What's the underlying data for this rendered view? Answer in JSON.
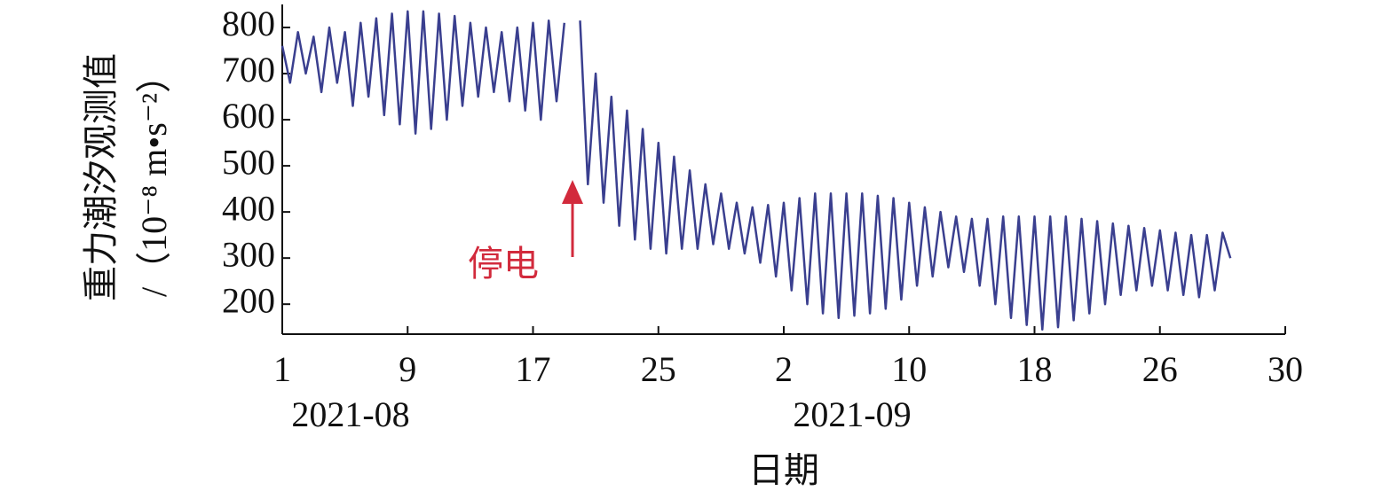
{
  "chart_data": {
    "type": "line",
    "y_label": "重力潮汐观测值",
    "y_unit_label": "/（10⁻⁸ m•s⁻²）",
    "x_label": "日期",
    "month_labels": [
      "2021-08",
      "2021-09"
    ],
    "annotation": "停电",
    "annotation_color": "#d22a3c",
    "color": "#3a3f8f",
    "xlim": [
      1,
      65
    ],
    "ylim": [
      135,
      850
    ],
    "xticks": [
      1,
      9,
      17,
      25,
      {
        "value": 33,
        "label": "2"
      },
      {
        "value": 41,
        "label": "10"
      },
      {
        "value": 49,
        "label": "18"
      },
      {
        "value": 57,
        "label": "26"
      },
      {
        "value": 65,
        "label": "30"
      }
    ],
    "yticks": [
      200,
      300,
      400,
      500,
      600,
      700,
      800
    ],
    "x": [
      1,
      1.5,
      2,
      2.5,
      3,
      3.5,
      4,
      4.5,
      5,
      5.5,
      6,
      6.5,
      7,
      7.5,
      8,
      8.5,
      9,
      9.5,
      10,
      10.5,
      11,
      11.5,
      12,
      12.5,
      13,
      13.5,
      14,
      14.5,
      15,
      15.5,
      16,
      16.5,
      17,
      17.5,
      18,
      18.5,
      19,
      19.5,
      20,
      20.5,
      21,
      21.5,
      22,
      22.5,
      23,
      23.5,
      24,
      24.5,
      25,
      25.5,
      26,
      26.5,
      27,
      27.5,
      28,
      28.5,
      29,
      29.5,
      30,
      30.5,
      31,
      31.5,
      32,
      32.5,
      33,
      33.5,
      34,
      34.5,
      35,
      35.5,
      36,
      36.5,
      37,
      37.5,
      38,
      38.5,
      39,
      39.5,
      40,
      40.5,
      41,
      41.5,
      42,
      42.5,
      43,
      43.5,
      44,
      44.5,
      45,
      45.5,
      46,
      46.5,
      47,
      47.5,
      48,
      48.5,
      49,
      49.5,
      50,
      50.5,
      51,
      51.5,
      52,
      52.5,
      53,
      53.5,
      54,
      54.5,
      55,
      55.5,
      56,
      56.5,
      57,
      57.5,
      58,
      58.5,
      59,
      59.5,
      60,
      60.5,
      61,
      61.5
    ],
    "values": [
      760,
      680,
      790,
      700,
      780,
      660,
      800,
      680,
      790,
      630,
      810,
      650,
      820,
      610,
      830,
      590,
      835,
      570,
      835,
      580,
      830,
      600,
      825,
      630,
      810,
      650,
      800,
      660,
      790,
      640,
      800,
      620,
      810,
      600,
      815,
      640,
      810,
      null,
      815,
      460,
      700,
      420,
      650,
      370,
      620,
      340,
      580,
      320,
      550,
      310,
      520,
      320,
      490,
      320,
      460,
      330,
      440,
      320,
      420,
      310,
      410,
      290,
      415,
      260,
      420,
      230,
      430,
      200,
      440,
      180,
      440,
      170,
      440,
      175,
      440,
      180,
      435,
      190,
      430,
      210,
      420,
      240,
      410,
      260,
      400,
      280,
      390,
      270,
      385,
      240,
      385,
      200,
      390,
      170,
      390,
      155,
      390,
      145,
      390,
      150,
      390,
      165,
      385,
      180,
      380,
      200,
      375,
      220,
      370,
      230,
      365,
      240,
      360,
      230,
      355,
      220,
      350,
      215,
      350,
      230,
      355,
      300
    ]
  }
}
